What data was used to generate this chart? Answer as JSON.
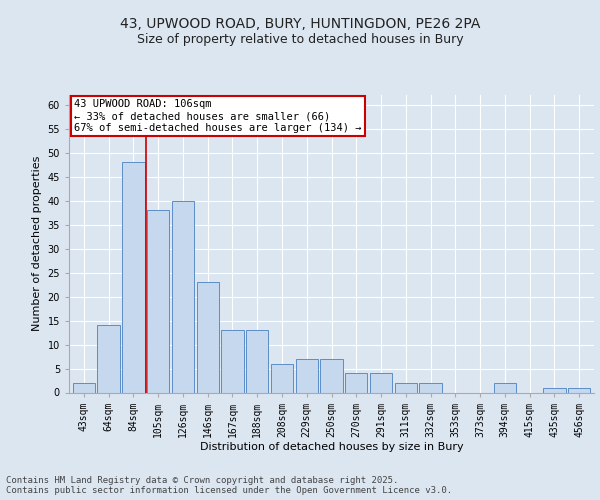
{
  "title_line1": "43, UPWOOD ROAD, BURY, HUNTINGDON, PE26 2PA",
  "title_line2": "Size of property relative to detached houses in Bury",
  "xlabel": "Distribution of detached houses by size in Bury",
  "ylabel": "Number of detached properties",
  "categories": [
    "43sqm",
    "64sqm",
    "84sqm",
    "105sqm",
    "126sqm",
    "146sqm",
    "167sqm",
    "188sqm",
    "208sqm",
    "229sqm",
    "250sqm",
    "270sqm",
    "291sqm",
    "311sqm",
    "332sqm",
    "353sqm",
    "373sqm",
    "394sqm",
    "415sqm",
    "435sqm",
    "456sqm"
  ],
  "values": [
    2,
    14,
    48,
    38,
    40,
    23,
    13,
    13,
    6,
    7,
    7,
    4,
    4,
    2,
    2,
    0,
    0,
    2,
    0,
    1,
    1
  ],
  "bar_color": "#c5d8ed",
  "bar_edge_color": "#5b8dc8",
  "background_color": "#dce6f1",
  "plot_bg_color": "#dce6f1",
  "grid_color": "#ffffff",
  "red_line_index": 2.5,
  "annotation_text": "43 UPWOOD ROAD: 106sqm\n← 33% of detached houses are smaller (66)\n67% of semi-detached houses are larger (134) →",
  "annotation_box_color": "#ffffff",
  "annotation_box_edge_color": "#cc0000",
  "ylim": [
    0,
    62
  ],
  "yticks": [
    0,
    5,
    10,
    15,
    20,
    25,
    30,
    35,
    40,
    45,
    50,
    55,
    60
  ],
  "footer": "Contains HM Land Registry data © Crown copyright and database right 2025.\nContains public sector information licensed under the Open Government Licence v3.0.",
  "title_fontsize": 10,
  "subtitle_fontsize": 9,
  "axis_label_fontsize": 8,
  "tick_fontsize": 7,
  "annotation_fontsize": 7.5,
  "footer_fontsize": 6.5
}
